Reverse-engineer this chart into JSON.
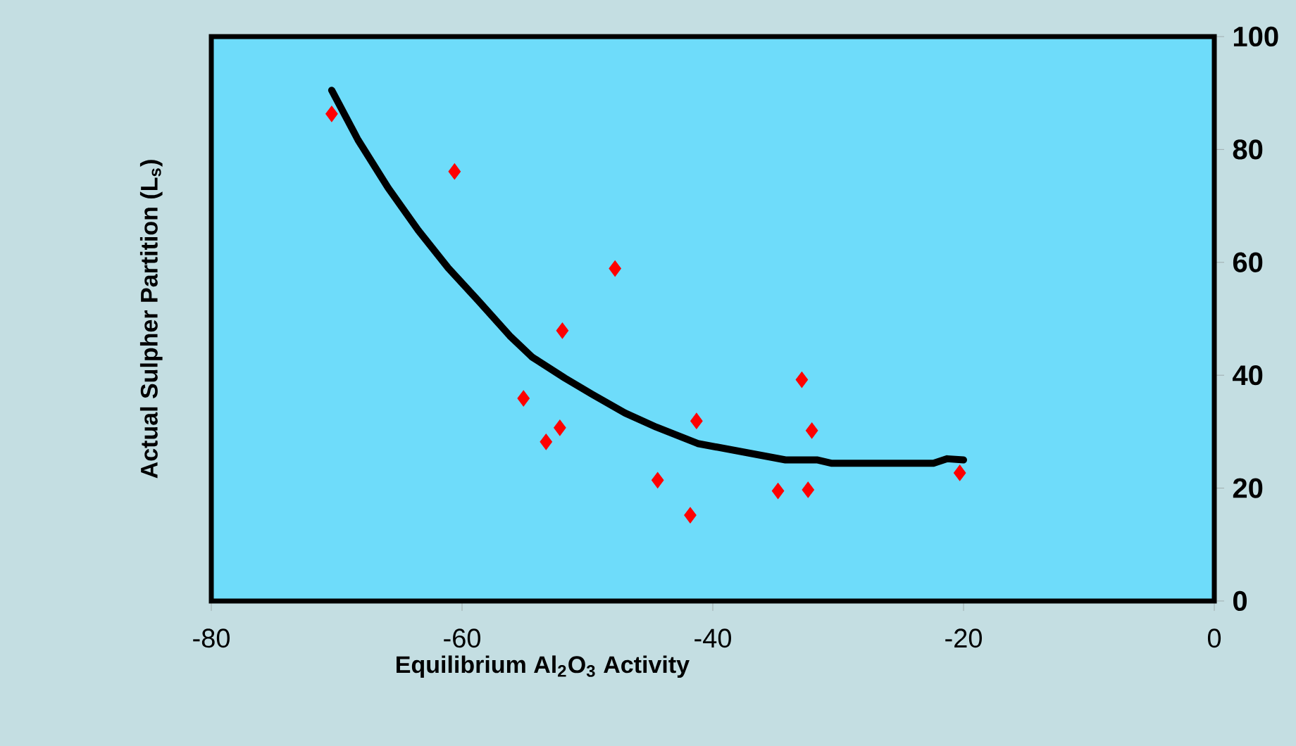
{
  "chart_data": {
    "type": "scatter",
    "xlabel": "Equilibrium Al$_{2}$O$_{3}$ Activity",
    "ylabel": "Actual Sulpher Partition (L$_{s}$)",
    "xlim": [
      -80,
      0
    ],
    "ylim": [
      0,
      100
    ],
    "xticks": [
      -80,
      -60,
      -40,
      -20,
      0
    ],
    "yticks": [
      0,
      20,
      40,
      60,
      80,
      100
    ],
    "series": [
      {
        "marker": "diamond",
        "color": "#ff0000",
        "x": [
          -70.4,
          -60.6,
          -47.8,
          -52.0,
          -55.1,
          -52.2,
          -53.3,
          -44.4,
          -41.3,
          -41.8,
          -34.8,
          -32.9,
          -32.1,
          -32.4,
          -20.3
        ],
        "values": [
          86.3,
          76.1,
          58.9,
          47.9,
          35.9,
          30.7,
          28.2,
          21.4,
          31.9,
          15.2,
          19.5,
          39.2,
          30.2,
          19.7,
          22.7
        ]
      },
      {
        "type": "line",
        "marker": "none",
        "color": "#000000",
        "x": [
          -70.4,
          -68.3,
          -65.9,
          -63.5,
          -61.1,
          -58.7,
          -56.2,
          -54.4,
          -51.8,
          -49.6,
          -47.0,
          -44.5,
          -41.2,
          -34.2,
          -31.7,
          -30.5,
          -22.4,
          -21.3,
          -20.0
        ],
        "values": [
          90.5,
          81.7,
          73.2,
          65.7,
          59.0,
          53.2,
          47.0,
          43.2,
          39.5,
          36.6,
          33.3,
          30.8,
          27.9,
          25.0,
          25.0,
          24.4,
          24.4,
          25.2,
          25.0
        ]
      }
    ]
  }
}
